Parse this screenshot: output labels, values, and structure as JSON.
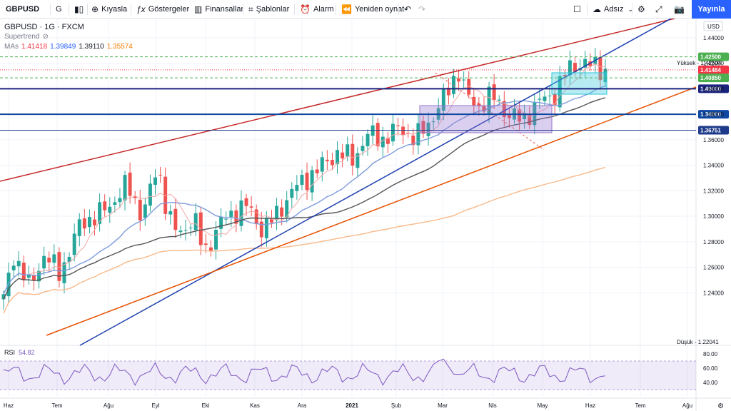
{
  "toolbar": {
    "symbol": "GBPUSD",
    "interval": "G",
    "compare_label": "Kıyasla",
    "indicators_label": "Göstergeler",
    "financials_label": "Finansallar",
    "templates_label": "Şablonlar",
    "alarm_label": "Alarm",
    "replay_label": "Yeniden oynat",
    "layout_name": "Adsız",
    "publish_label": "Yayınla"
  },
  "legend": {
    "title": "GBPUSD · 1G · FXCM",
    "indicator1": "Supertrend",
    "mas_label": "MAs",
    "mas_values": [
      "1.41418",
      "1.39849",
      "1.39110",
      "1.35574"
    ],
    "mas_colors": [
      "#f23645",
      "#2962ff",
      "#131722",
      "#f57c00"
    ],
    "rsi_label": "RSI",
    "rsi_value": "54.82"
  },
  "price_axis": {
    "currency": "USD",
    "high_label": "Yüksek - 1.42504",
    "low_label": "Düşük - 1.22041"
  },
  "chart_data": {
    "type": "candlestick",
    "symbol": "GBPUSD",
    "timeframe": "1G",
    "source": "FXCM",
    "ylim": [
      1.2,
      1.455
    ],
    "y_ticks": [
      1.24,
      1.26,
      1.28,
      1.3,
      1.32,
      1.34,
      1.36,
      1.38,
      1.4,
      1.42,
      1.44
    ],
    "x_ticks": [
      "Haz",
      "Tem",
      "Ağu",
      "Eyl",
      "Eki",
      "Kas",
      "Ara",
      "2021",
      "Şub",
      "Mar",
      "Nis",
      "May",
      "Haz",
      "Tem",
      "Ağu"
    ],
    "close_anchors": [
      [
        0,
        1.235
      ],
      [
        10,
        1.27
      ],
      [
        25,
        1.245
      ],
      [
        40,
        1.27
      ],
      [
        55,
        1.255
      ],
      [
        75,
        1.295
      ],
      [
        90,
        1.3
      ],
      [
        105,
        1.31
      ],
      [
        120,
        1.325
      ],
      [
        135,
        1.3
      ],
      [
        150,
        1.34
      ],
      [
        160,
        1.3
      ],
      [
        170,
        1.285
      ],
      [
        185,
        1.3
      ],
      [
        195,
        1.27
      ],
      [
        210,
        1.295
      ],
      [
        220,
        1.3
      ],
      [
        235,
        1.31
      ],
      [
        250,
        1.29
      ],
      [
        265,
        1.3
      ],
      [
        280,
        1.32
      ],
      [
        295,
        1.33
      ],
      [
        310,
        1.34
      ],
      [
        325,
        1.35
      ],
      [
        340,
        1.345
      ],
      [
        355,
        1.365
      ],
      [
        370,
        1.36
      ],
      [
        385,
        1.37
      ],
      [
        400,
        1.36
      ],
      [
        415,
        1.375
      ],
      [
        430,
        1.395
      ],
      [
        442,
        1.415
      ],
      [
        450,
        1.395
      ],
      [
        460,
        1.385
      ],
      [
        475,
        1.395
      ],
      [
        490,
        1.38
      ],
      [
        505,
        1.375
      ],
      [
        520,
        1.39
      ],
      [
        535,
        1.395
      ],
      [
        548,
        1.415
      ],
      [
        560,
        1.42
      ],
      [
        575,
        1.418
      ],
      [
        585,
        1.414
      ]
    ],
    "horizontal_levels": [
      {
        "value": 1.425,
        "label": "1.42500",
        "color": "#4caf50",
        "style": "dashed"
      },
      {
        "value": 1.41484,
        "label": "1.41484",
        "color": "#f23645",
        "style": "dotted"
      },
      {
        "value": 1.4085,
        "label": "1.40850",
        "color": "#4caf50",
        "style": "dashed"
      },
      {
        "value": 1.4,
        "label": "1.40000",
        "color": "#1a237e",
        "style": "solid"
      },
      {
        "value": 1.38,
        "label": "1.38000",
        "color": "#0d47a1",
        "style": "solid"
      },
      {
        "value": 1.36751,
        "label": "1.36751",
        "color": "#1e3a8a",
        "style": "solid"
      }
    ],
    "rsi": {
      "value": 54.82,
      "y_ticks": [
        40.0,
        60.0,
        80.0
      ],
      "overbought": 70,
      "oversold": 30
    }
  }
}
